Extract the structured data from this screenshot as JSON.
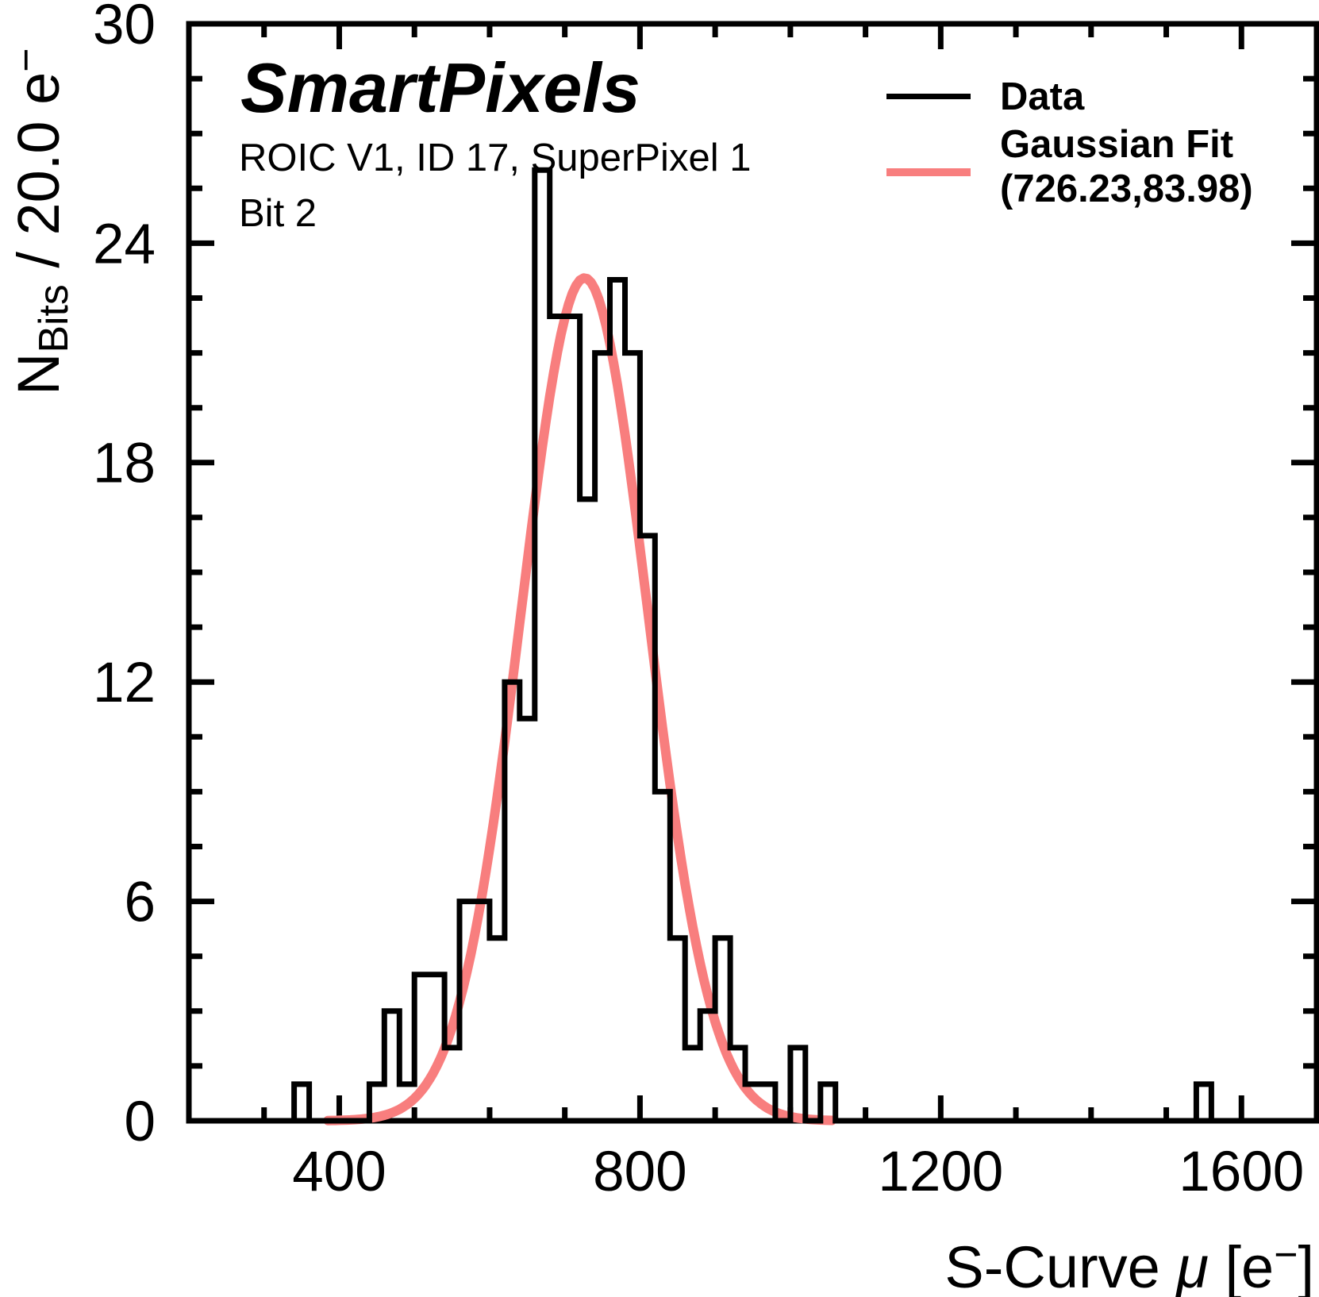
{
  "header": {
    "title": "SmartPixels",
    "subtitle1": "ROIC V1, ID 17, SuperPixel 1",
    "subtitle2": "Bit 2"
  },
  "legend": {
    "entries": [
      {
        "label": "Data",
        "color": "#000000"
      },
      {
        "label": "Gaussian Fit",
        "label2": "(726.23,83.98)",
        "color": "#f87e7e"
      }
    ]
  },
  "axes": {
    "x_label": {
      "pre": "S-Curve ",
      "mu": "μ",
      "mid": " [e",
      "sup": "−",
      "post": "]"
    },
    "y_label": {
      "main": "N",
      "sub": "Bits",
      "mid": " / 20.0 e",
      "sup": "−"
    }
  },
  "chart_data": {
    "type": "bar",
    "subtype": "step-histogram",
    "title": "SmartPixels",
    "annotations": [
      "ROIC V1, ID 17, SuperPixel 1",
      "Bit 2"
    ],
    "xlabel": "S-Curve μ [e−]",
    "ylabel": "NBits / 20.0 e−",
    "xlim": [
      200,
      1700
    ],
    "ylim": [
      0,
      30
    ],
    "x_major_ticks": [
      400,
      800,
      1200,
      1600
    ],
    "x_minor_step": 100,
    "y_major_ticks": [
      0,
      6,
      12,
      18,
      24,
      30
    ],
    "y_minor_step": 1.5,
    "grid": false,
    "legend_position": "top-right",
    "bin_width": 20,
    "bins": [
      [
        340,
        1
      ],
      [
        440,
        1
      ],
      [
        460,
        3
      ],
      [
        480,
        1
      ],
      [
        500,
        4
      ],
      [
        520,
        4
      ],
      [
        540,
        2
      ],
      [
        560,
        6
      ],
      [
        580,
        6
      ],
      [
        600,
        5
      ],
      [
        620,
        12
      ],
      [
        640,
        11
      ],
      [
        660,
        26
      ],
      [
        680,
        22
      ],
      [
        700,
        22
      ],
      [
        720,
        17
      ],
      [
        740,
        21
      ],
      [
        760,
        23
      ],
      [
        780,
        21
      ],
      [
        800,
        16
      ],
      [
        820,
        9
      ],
      [
        840,
        5
      ],
      [
        860,
        2
      ],
      [
        880,
        3
      ],
      [
        900,
        5
      ],
      [
        920,
        2
      ],
      [
        940,
        1
      ],
      [
        960,
        1
      ],
      [
        1000,
        2
      ],
      [
        1040,
        1
      ],
      [
        1540,
        1
      ]
    ],
    "total_entries": 256,
    "series": [
      {
        "name": "Data",
        "color": "#000000"
      },
      {
        "name": "Gaussian Fit (726.23,83.98)",
        "color": "#f87e7e"
      }
    ],
    "fit": {
      "type": "gaussian",
      "mean": 726.23,
      "sigma": 83.98,
      "amplitude": 23.05,
      "range": [
        385,
        1058
      ],
      "color": "#f87e7e"
    }
  }
}
